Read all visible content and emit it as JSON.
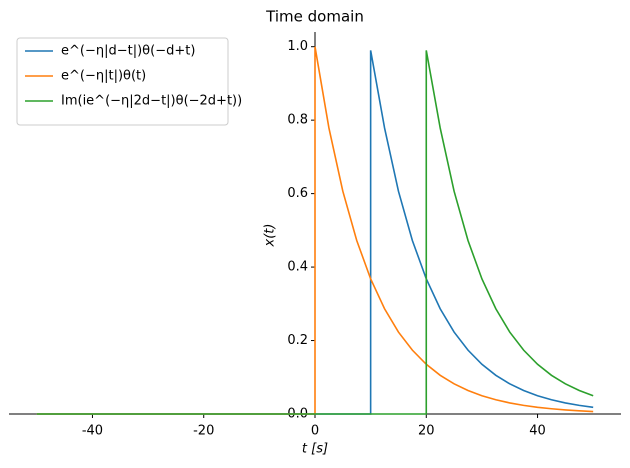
{
  "chart_data": {
    "type": "line",
    "title": "Time domain",
    "x_label": "t [s]",
    "y_label": "x(t)",
    "xlim": [
      -55,
      55
    ],
    "ylim": [
      0,
      1.04
    ],
    "xticks": [
      -40,
      -20,
      0,
      20,
      40
    ],
    "yticks": [
      {
        "value": 0,
        "label": "0.0"
      },
      {
        "value": 0.2,
        "label": "0.2"
      },
      {
        "value": 0.4,
        "label": "0.4"
      },
      {
        "value": 0.6,
        "label": "0.6"
      },
      {
        "value": 0.8,
        "label": "0.8"
      },
      {
        "value": 1,
        "label": "1.0"
      }
    ],
    "legend": "upper left",
    "series": [
      {
        "name": "e^(−η|d−t|)θ(−d+t)",
        "color": "#1f77b4",
        "x": [
          -50,
          10,
          10,
          12.5,
          15,
          17.5,
          20,
          22.5,
          25,
          27.5,
          30,
          32.5,
          35,
          37.5,
          40,
          42.5,
          45,
          47.5,
          50
        ],
        "values": [
          0,
          0,
          0.99,
          0.7788,
          0.6065,
          0.4724,
          0.3679,
          0.2865,
          0.2231,
          0.1738,
          0.1353,
          0.1054,
          0.0821,
          0.0639,
          0.0498,
          0.0388,
          0.0302,
          0.0235,
          0.0183
        ]
      },
      {
        "name": "e^(−η|t|)θ(t)",
        "color": "#ff7f0e",
        "x": [
          -50,
          0,
          0,
          2.5,
          5,
          7.5,
          10,
          12.5,
          15,
          17.5,
          20,
          22.5,
          25,
          27.5,
          30,
          32.5,
          35,
          37.5,
          40,
          42.5,
          45,
          47.5,
          50
        ],
        "values": [
          0,
          0,
          1,
          0.7788,
          0.6065,
          0.4724,
          0.3679,
          0.2865,
          0.2231,
          0.1738,
          0.1353,
          0.1054,
          0.0821,
          0.0639,
          0.0498,
          0.0388,
          0.0302,
          0.0235,
          0.0183,
          0.0143,
          0.0111,
          0.0087,
          0.0067
        ]
      },
      {
        "name": "Im(ie^(−η|2d−t|)θ(−2d+t))",
        "color": "#2ca02c",
        "x": [
          -50,
          20,
          20,
          22.5,
          25,
          27.5,
          30,
          32.5,
          35,
          37.5,
          40,
          42.5,
          45,
          47.5,
          50
        ],
        "values": [
          0,
          0,
          0.99,
          0.7788,
          0.6065,
          0.4724,
          0.3679,
          0.2865,
          0.2231,
          0.1738,
          0.1353,
          0.1054,
          0.0821,
          0.0639,
          0.0498
        ]
      }
    ]
  }
}
